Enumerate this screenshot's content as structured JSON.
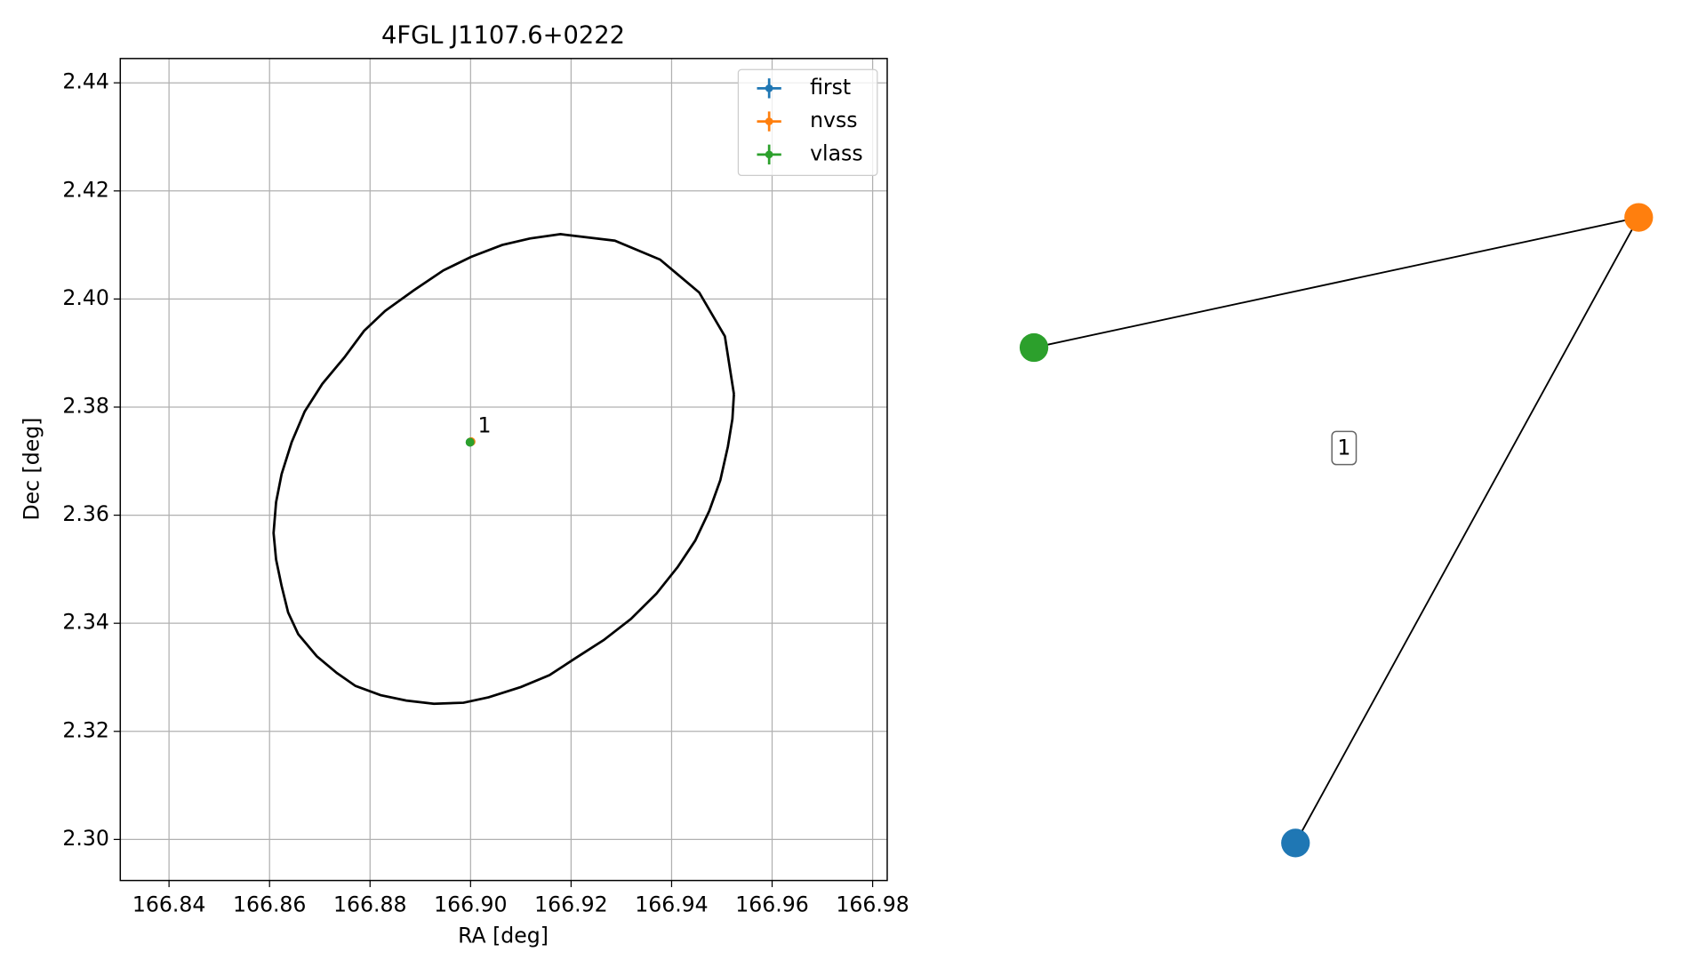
{
  "chart_data": [
    {
      "type": "scatter",
      "title": "4FGL J1107.6+0222",
      "x_label": "RA [deg]",
      "y_label": "Dec [deg]",
      "xlim": [
        166.8303,
        166.9829
      ],
      "ylim": [
        2.2924,
        2.4445
      ],
      "xticks": [
        166.84,
        166.86,
        166.88,
        {
          "value": 166.9,
          "label": "166.90"
        },
        166.92,
        166.94,
        166.96,
        166.98
      ],
      "yticks": [
        {
          "value": 2.3,
          "label": "2.30"
        },
        2.32,
        2.34,
        2.36,
        2.38,
        {
          "value": 2.4,
          "label": "2.40"
        },
        2.42,
        2.44
      ],
      "grid": true,
      "legend": "upper right",
      "series": [
        {
          "name": "first",
          "color": "#1f77b4",
          "x": [
            166.8999
          ],
          "y": [
            2.3735
          ]
        },
        {
          "name": "nvss",
          "color": "#ff7f0e",
          "x": [
            166.9001
          ],
          "y": [
            2.3736
          ]
        },
        {
          "name": "vlass",
          "color": "#2ca02c",
          "x": [
            166.8999
          ],
          "y": [
            2.3735
          ]
        }
      ],
      "annotation": "1",
      "ellipse": {
        "color": "#000000",
        "x": [
          166.9524,
          166.9506,
          166.9455,
          166.9377,
          166.9287,
          166.9179,
          166.9118,
          166.9063,
          166.9001,
          166.8946,
          166.8887,
          166.883,
          166.8788,
          166.8749,
          166.8705,
          166.867,
          166.8644,
          166.8624,
          166.8613,
          166.8608,
          166.8613,
          166.8624,
          166.8637,
          166.8657,
          166.8694,
          166.8734,
          166.8771,
          166.8821,
          166.8872,
          166.8927,
          166.8986,
          166.9036,
          166.91,
          166.9157,
          166.9208,
          166.9265,
          166.9319,
          166.937,
          166.9412,
          166.9447,
          166.9475,
          166.9497,
          166.9512,
          166.9521,
          166.9524
        ],
        "y": [
          2.3824,
          2.3931,
          2.4012,
          2.4073,
          2.4108,
          2.412,
          2.4112,
          2.41,
          2.4078,
          2.4053,
          2.4016,
          2.3978,
          2.3941,
          2.3892,
          2.3843,
          2.3792,
          2.3735,
          2.3676,
          2.3624,
          2.3567,
          2.3518,
          2.3469,
          2.342,
          2.338,
          2.3339,
          2.3308,
          2.3284,
          2.3267,
          2.3257,
          2.3251,
          2.3253,
          2.3263,
          2.3282,
          2.3304,
          2.3335,
          2.3369,
          2.3408,
          2.3455,
          2.3504,
          2.3553,
          2.3608,
          2.3665,
          2.3727,
          2.3778,
          2.3824
        ]
      }
    },
    {
      "type": "network",
      "nodes": [
        {
          "color": "#1f77b4"
        },
        {
          "color": "#ff7f0e"
        },
        {
          "color": "#2ca02c"
        }
      ],
      "edges": [
        [
          2,
          1
        ],
        [
          1,
          0
        ]
      ],
      "label": "1"
    }
  ]
}
